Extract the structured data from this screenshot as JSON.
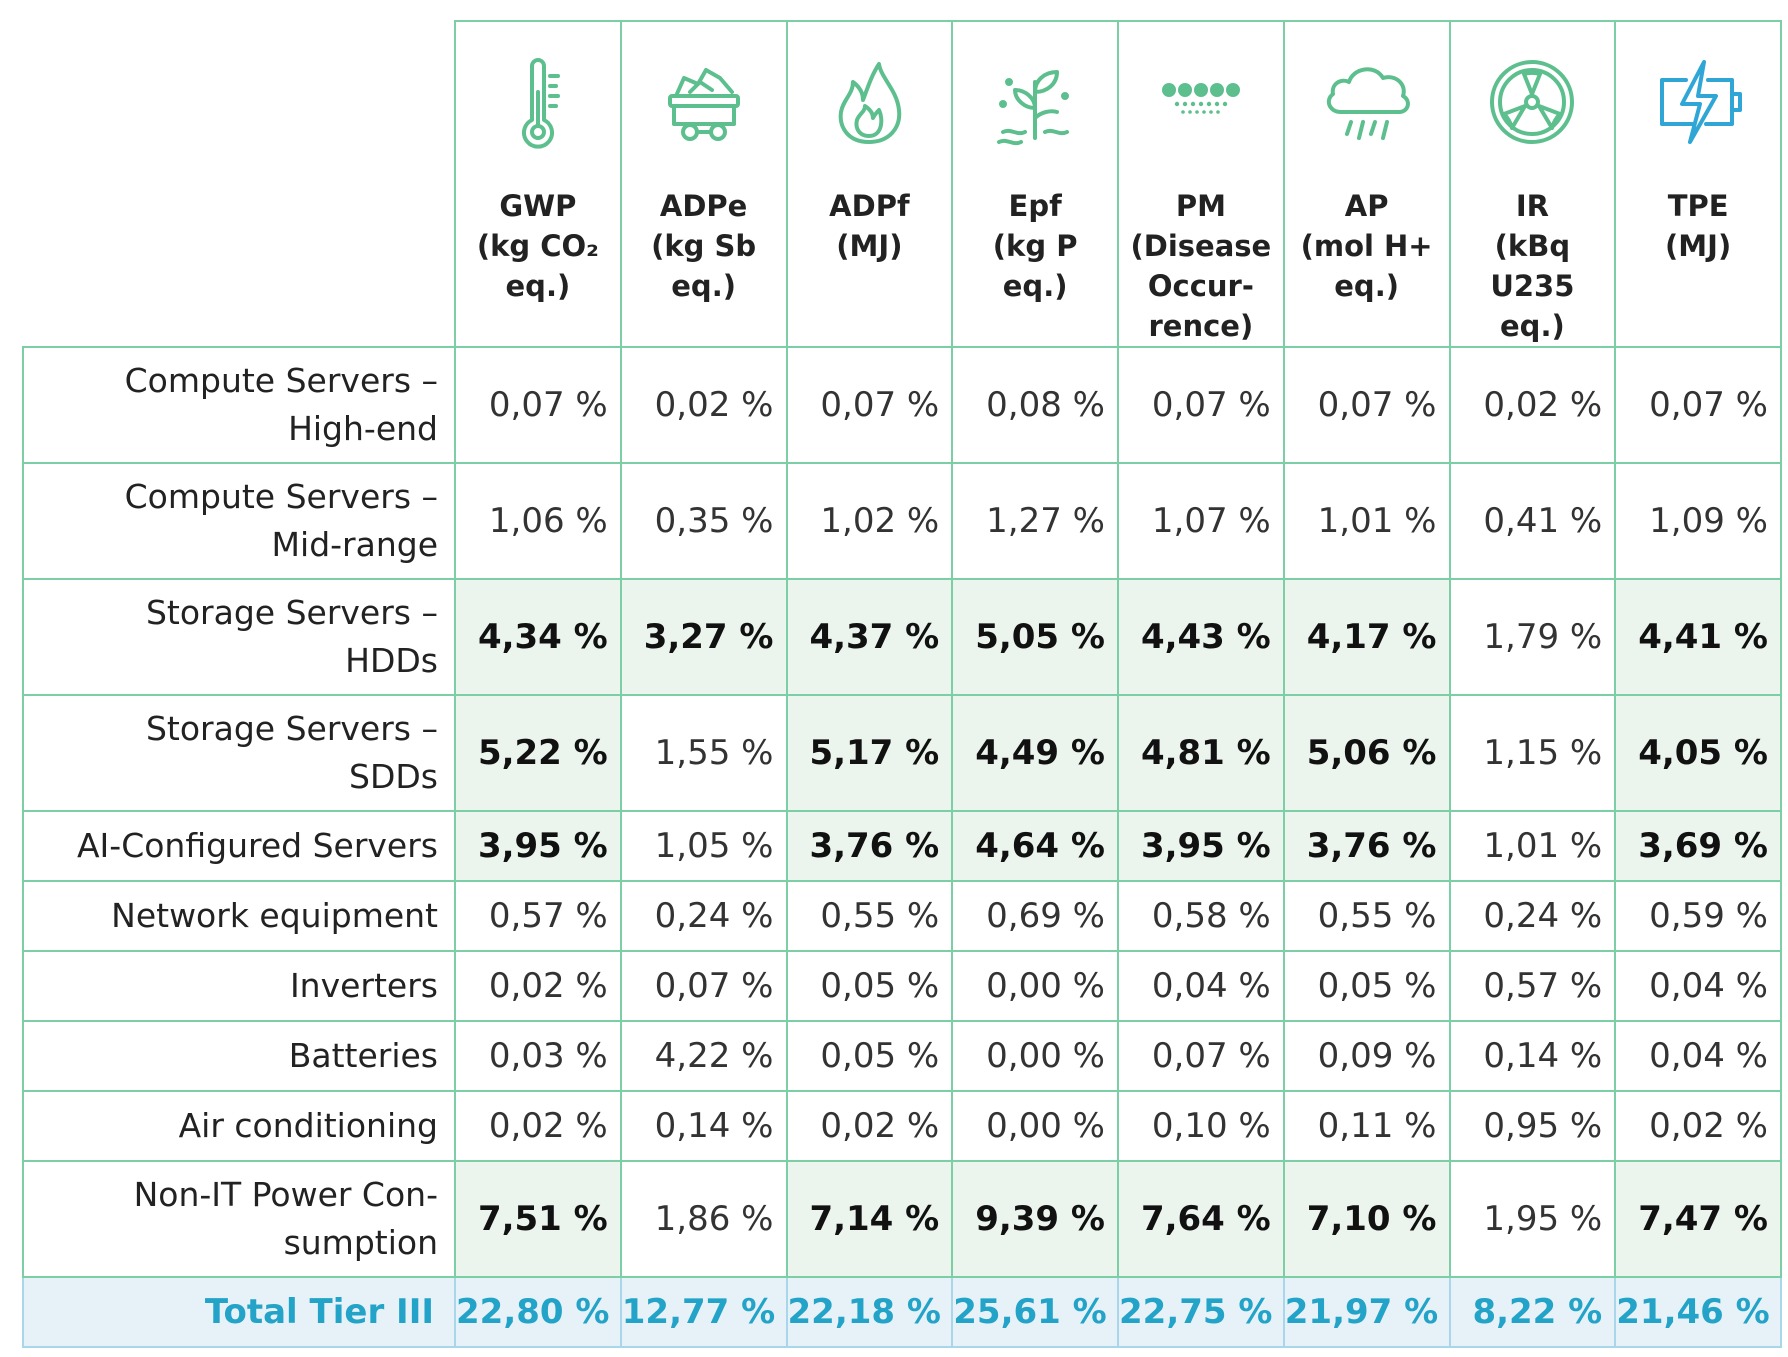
{
  "colors": {
    "border": "#7ccfa4",
    "highlight_bg": "#ebf5ee",
    "total_bg": "#e6f2f7",
    "total_text": "#24a3c8",
    "icon_green": "#5dbf8e",
    "icon_blue": "#2fa6d6"
  },
  "columns": [
    {
      "icon": "thermometer-icon",
      "lines": [
        "GWP",
        "(kg CO₂",
        "eq.)"
      ]
    },
    {
      "icon": "mine-cart-icon",
      "lines": [
        "ADPe",
        "(kg Sb",
        "eq.)"
      ]
    },
    {
      "icon": "flame-icon",
      "lines": [
        "ADPf",
        "(MJ)"
      ]
    },
    {
      "icon": "plant-sprout-icon",
      "lines": [
        "Epf",
        "(kg P",
        "eq.)"
      ]
    },
    {
      "icon": "particles-icon",
      "lines": [
        "PM",
        "(Disease",
        "Occur-",
        "rence)"
      ]
    },
    {
      "icon": "acid-rain-cloud-icon",
      "lines": [
        "AP",
        "(mol H+",
        "eq.)"
      ]
    },
    {
      "icon": "radiation-icon",
      "lines": [
        "IR",
        "(kBq",
        "U235",
        "eq.)"
      ]
    },
    {
      "icon": "battery-bolt-icon",
      "lines": [
        "TPE",
        "(MJ)"
      ]
    }
  ],
  "rows": [
    {
      "label": [
        "Compute Servers –",
        "High-end"
      ],
      "values": [
        "0,07 %",
        "0,02 %",
        "0,07 %",
        "0,08 %",
        "0,07 %",
        "0,07 %",
        "0,02 %",
        "0,07 %"
      ],
      "highlight": [
        false,
        false,
        false,
        false,
        false,
        false,
        false,
        false
      ]
    },
    {
      "label": [
        "Compute Servers –",
        "Mid-range"
      ],
      "values": [
        "1,06 %",
        "0,35 %",
        "1,02 %",
        "1,27 %",
        "1,07 %",
        "1,01 %",
        "0,41 %",
        "1,09 %"
      ],
      "highlight": [
        false,
        false,
        false,
        false,
        false,
        false,
        false,
        false
      ]
    },
    {
      "label": [
        "Storage Servers –",
        "HDDs"
      ],
      "values": [
        "4,34 %",
        "3,27 %",
        "4,37 %",
        "5,05 %",
        "4,43 %",
        "4,17 %",
        "1,79 %",
        "4,41 %"
      ],
      "highlight": [
        true,
        true,
        true,
        true,
        true,
        true,
        false,
        true
      ]
    },
    {
      "label": [
        "Storage Servers –",
        "SDDs"
      ],
      "values": [
        "5,22 %",
        "1,55 %",
        "5,17 %",
        "4,49 %",
        "4,81 %",
        "5,06 %",
        "1,15 %",
        "4,05 %"
      ],
      "highlight": [
        true,
        false,
        true,
        true,
        true,
        true,
        false,
        true
      ]
    },
    {
      "label": [
        "AI-Configured Servers"
      ],
      "values": [
        "3,95 %",
        "1,05 %",
        "3,76 %",
        "4,64 %",
        "3,95 %",
        "3,76 %",
        "1,01 %",
        "3,69 %"
      ],
      "highlight": [
        true,
        false,
        true,
        true,
        true,
        true,
        false,
        true
      ]
    },
    {
      "label": [
        "Network equipment"
      ],
      "values": [
        "0,57 %",
        "0,24 %",
        "0,55 %",
        "0,69 %",
        "0,58 %",
        "0,55 %",
        "0,24 %",
        "0,59 %"
      ],
      "highlight": [
        false,
        false,
        false,
        false,
        false,
        false,
        false,
        false
      ]
    },
    {
      "label": [
        "Inverters"
      ],
      "values": [
        "0,02 %",
        "0,07 %",
        "0,05 %",
        "0,00 %",
        "0,04 %",
        "0,05 %",
        "0,57 %",
        "0,04 %"
      ],
      "highlight": [
        false,
        false,
        false,
        false,
        false,
        false,
        false,
        false
      ]
    },
    {
      "label": [
        "Batteries"
      ],
      "values": [
        "0,03 %",
        "4,22 %",
        "0,05 %",
        "0,00 %",
        "0,07 %",
        "0,09 %",
        "0,14 %",
        "0,04 %"
      ],
      "highlight": [
        false,
        false,
        false,
        false,
        false,
        false,
        false,
        false
      ]
    },
    {
      "label": [
        "Air conditioning"
      ],
      "values": [
        "0,02 %",
        "0,14 %",
        "0,02 %",
        "0,00 %",
        "0,10 %",
        "0,11 %",
        "0,95 %",
        "0,02 %"
      ],
      "highlight": [
        false,
        false,
        false,
        false,
        false,
        false,
        false,
        false
      ]
    },
    {
      "label": [
        "Non-IT Power Con-",
        "sumption"
      ],
      "values": [
        "7,51 %",
        "1,86 %",
        "7,14 %",
        "9,39 %",
        "7,64 %",
        "7,10 %",
        "1,95 %",
        "7,47 %"
      ],
      "highlight": [
        true,
        false,
        true,
        true,
        true,
        true,
        false,
        true
      ]
    }
  ],
  "total": {
    "label": "Total Tier III",
    "values": [
      "22,80 %",
      "12,77 %",
      "22,18 %",
      "25,61 %",
      "22,75 %",
      "21,97 %",
      "8,22 %",
      "21,46 %"
    ]
  }
}
